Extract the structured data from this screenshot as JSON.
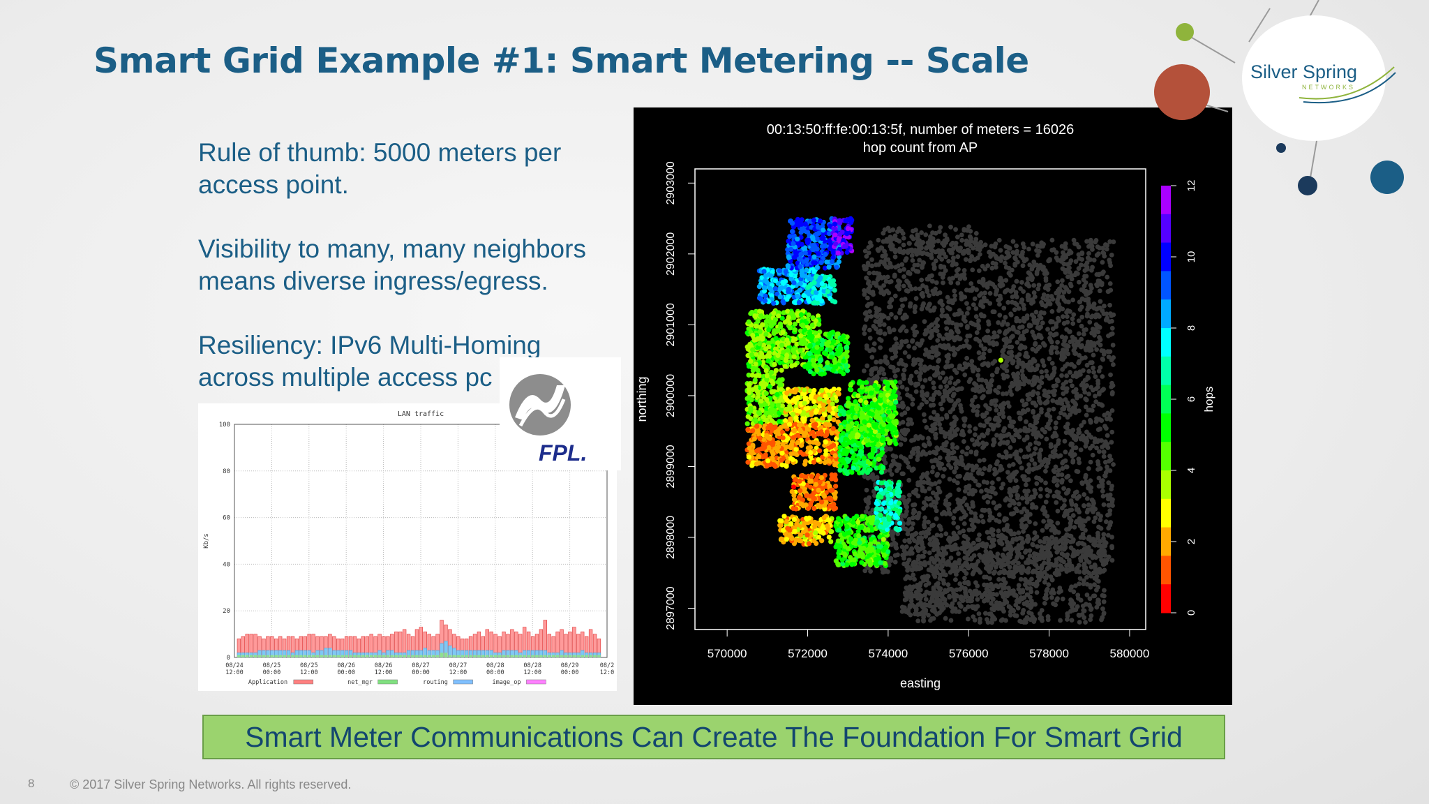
{
  "slide": {
    "title": "Smart Grid Example #1: Smart Metering -- Scale",
    "bullets": [
      "Rule of thumb: 5000 meters per access point.",
      "Visibility to many, many neighbors means diverse ingress/egress.",
      "Resiliency: IPv6 Multi-Homing across multiple access pc"
    ],
    "banner": "Smart Meter Communications Can Create The Foundation For Smart Grid",
    "page_number": "8",
    "copyright": "© 2017 Silver Spring Networks.  All rights reserved.",
    "logo_company": "Silver Spring",
    "logo_sub": "NETWORKS",
    "partner_logo": "FPL."
  },
  "chart_data": [
    {
      "type": "bar",
      "title": "LAN traffic",
      "ylabel": "Kb/s",
      "ylim": [
        0,
        100
      ],
      "yticks": [
        0,
        20,
        40,
        60,
        80,
        100
      ],
      "x_ticks": [
        "08/24\n12:00",
        "08/25\n00:00",
        "08/25\n12:00",
        "08/26\n00:00",
        "08/26\n12:00",
        "08/27\n00:00",
        "08/27\n12:00",
        "08/28\n00:00",
        "08/28\n12:00",
        "08/29\n00:00",
        "08/2\n12:0"
      ],
      "legend": [
        "Application",
        "net_mgr",
        "routing",
        "image_op"
      ],
      "legend_colors": [
        "#ff8080",
        "#80e080",
        "#80c0ff",
        "#ff80ff"
      ],
      "series": [
        {
          "name": "Application",
          "values": [
            8,
            9,
            10,
            10,
            10,
            9,
            8,
            9,
            9,
            8,
            9,
            8,
            9,
            9,
            8,
            9,
            9,
            10,
            10,
            9,
            9,
            9,
            10,
            9,
            8,
            8,
            9,
            9,
            9,
            8,
            9,
            9,
            10,
            9,
            10,
            9,
            9,
            10,
            11,
            11,
            12,
            10,
            9,
            12,
            13,
            11,
            10,
            9,
            10,
            16,
            14,
            12,
            10,
            9,
            8,
            8,
            9,
            10,
            11,
            9,
            12,
            11,
            10,
            9,
            11,
            10,
            12,
            11,
            10,
            13,
            11,
            9,
            10,
            12,
            16,
            10,
            9,
            11,
            12,
            10,
            11,
            13,
            10,
            11,
            9,
            12,
            10,
            8
          ]
        },
        {
          "name": "routing",
          "values": [
            2,
            2,
            2,
            2,
            2,
            3,
            3,
            3,
            3,
            3,
            3,
            3,
            3,
            2,
            3,
            3,
            3,
            3,
            2,
            3,
            3,
            4,
            4,
            3,
            3,
            3,
            3,
            3,
            2,
            2,
            2,
            2,
            2,
            2,
            3,
            2,
            3,
            3,
            2,
            2,
            2,
            3,
            3,
            3,
            3,
            4,
            3,
            3,
            3,
            6,
            7,
            5,
            4,
            3,
            3,
            3,
            3,
            3,
            3,
            3,
            3,
            3,
            2,
            2,
            3,
            3,
            3,
            3,
            2,
            3,
            3,
            3,
            3,
            3,
            3,
            2,
            2,
            2,
            3,
            2,
            2,
            2,
            2,
            3,
            2,
            2,
            2,
            2
          ]
        },
        {
          "name": "net_mgr",
          "values": [
            1,
            1,
            1,
            1,
            1,
            1,
            1,
            1,
            1,
            1,
            1,
            1,
            1,
            1,
            1,
            1,
            1,
            1,
            1,
            1,
            1,
            1,
            1,
            1,
            1,
            1,
            1,
            1,
            1,
            1,
            1,
            1,
            1,
            1,
            1,
            1,
            1,
            1,
            1,
            1,
            1,
            1,
            1,
            1,
            1,
            1,
            1,
            1,
            1,
            2,
            2,
            1,
            1,
            1,
            1,
            1,
            1,
            1,
            1,
            1,
            1,
            1,
            1,
            1,
            1,
            1,
            1,
            1,
            1,
            1,
            1,
            1,
            1,
            1,
            1,
            1,
            1,
            1,
            1,
            1,
            1,
            1,
            1,
            1,
            1,
            1,
            1,
            1
          ]
        },
        {
          "name": "image_op",
          "values": [
            0,
            0,
            0,
            0,
            0,
            0,
            0,
            0,
            0,
            0,
            0,
            0,
            0,
            0,
            0,
            0,
            0,
            0,
            0,
            0,
            0,
            0,
            0,
            0,
            0,
            0,
            0,
            0,
            0,
            0,
            0,
            0,
            0,
            0,
            0,
            0,
            0,
            0,
            0,
            0,
            0,
            0,
            0,
            0,
            0,
            0,
            0,
            0,
            0,
            0,
            0,
            0,
            0,
            0,
            0,
            0,
            0,
            0,
            0,
            0,
            0,
            0,
            0,
            0,
            0,
            0,
            0,
            0,
            0,
            0,
            0,
            0,
            0,
            0,
            0,
            0,
            0,
            0,
            0,
            0,
            0,
            0,
            0,
            0,
            0,
            0,
            0,
            0
          ]
        }
      ]
    },
    {
      "type": "scatter",
      "title": "00:13:50:ff:fe:00:13:5f, number of meters = 16026",
      "subtitle": "hop count from AP",
      "xlabel": "easting",
      "ylabel": "northing",
      "xlim": [
        569200,
        580400
      ],
      "ylim": [
        2896700,
        2903200
      ],
      "xticks": [
        570000,
        572000,
        574000,
        576000,
        578000,
        580000
      ],
      "yticks": [
        2897000,
        2898000,
        2899000,
        2900000,
        2901000,
        2902000,
        2903000
      ],
      "colorbar": {
        "label": "hops",
        "min": 0,
        "max": 12,
        "ticks": [
          0,
          2,
          4,
          6,
          8,
          10,
          12
        ],
        "colors": [
          "#ff0000",
          "#ff5500",
          "#ffaa00",
          "#ffff00",
          "#aaff00",
          "#55ff00",
          "#00ff00",
          "#00ff55",
          "#00ffaa",
          "#00ffff",
          "#00aaff",
          "#0055ff",
          "#0000ff",
          "#5500ff",
          "#aa00ff"
        ]
      },
      "regions": [
        {
          "x": [
            570800,
            572200
          ],
          "y": [
            2901300,
            2901800
          ],
          "hops": 8.5
        },
        {
          "x": [
            571500,
            572800
          ],
          "y": [
            2901800,
            2902500
          ],
          "hops": 9.5
        },
        {
          "x": [
            572600,
            573100
          ],
          "y": [
            2902000,
            2902500
          ],
          "hops": 11
        },
        {
          "x": [
            572000,
            572700
          ],
          "y": [
            2901300,
            2901700
          ],
          "hops": 7.5
        },
        {
          "x": [
            570500,
            572300
          ],
          "y": [
            2900400,
            2901200
          ],
          "hops": 4.2
        },
        {
          "x": [
            572000,
            573000
          ],
          "y": [
            2900300,
            2900900
          ],
          "hops": 5.0
        },
        {
          "x": [
            570500,
            571400
          ],
          "y": [
            2899600,
            2900400
          ],
          "hops": 4.0
        },
        {
          "x": [
            571400,
            572800
          ],
          "y": [
            2899600,
            2900100
          ],
          "hops": 2.5
        },
        {
          "x": [
            570500,
            572800
          ],
          "y": [
            2899000,
            2899600
          ],
          "hops": 1.5
        },
        {
          "x": [
            572800,
            573900
          ],
          "y": [
            2898900,
            2899900
          ],
          "hops": 5.5
        },
        {
          "x": [
            573000,
            574200
          ],
          "y": [
            2899300,
            2900200
          ],
          "hops": 4.6
        },
        {
          "x": [
            571600,
            572700
          ],
          "y": [
            2898400,
            2898900
          ],
          "hops": 1.4
        },
        {
          "x": [
            571300,
            572600
          ],
          "y": [
            2897900,
            2898300
          ],
          "hops": 2.2
        },
        {
          "x": [
            572700,
            574000
          ],
          "y": [
            2897600,
            2898300
          ],
          "hops": 4.8
        },
        {
          "x": [
            573700,
            574300
          ],
          "y": [
            2898100,
            2898800
          ],
          "hops": 6.8
        }
      ],
      "isolated_point": {
        "x": 576800,
        "y": 2900500,
        "hops": 3
      }
    }
  ]
}
